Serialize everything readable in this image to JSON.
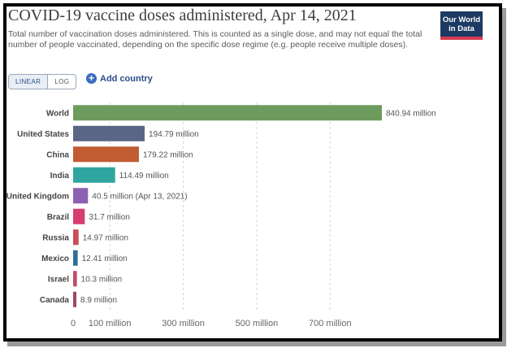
{
  "header": {
    "title": "COVID-19 vaccine doses administered, Apr 14, 2021",
    "subtitle": "Total number of vaccination doses administered. This is counted as a single dose, and may not equal the total number of people vaccinated, depending on the specific dose regime (e.g. people receive multiple doses).",
    "logo_line1": "Our World",
    "logo_line2": "in Data"
  },
  "controls": {
    "linear_label": "LINEAR",
    "log_label": "LOG",
    "add_country_label": "Add country",
    "plus_glyph": "+"
  },
  "chart_data": {
    "type": "bar",
    "orientation": "horizontal",
    "categories": [
      "World",
      "United States",
      "China",
      "India",
      "United Kingdom",
      "Brazil",
      "Russia",
      "Mexico",
      "Israel",
      "Canada"
    ],
    "values": [
      840.94,
      194.79,
      179.22,
      114.49,
      40.5,
      31.7,
      14.97,
      12.41,
      10.3,
      8.9
    ],
    "value_labels": [
      "840.94 million",
      "194.79 million",
      "179.22 million",
      "114.49 million",
      "40.5 million (Apr 13, 2021)",
      "31.7 million",
      "14.97 million",
      "12.41 million",
      "10.3 million",
      "8.9 million"
    ],
    "colors": [
      "#6d9b5d",
      "#5a6684",
      "#c15c33",
      "#2fa5a0",
      "#8c61b3",
      "#d63d72",
      "#c94f58",
      "#2e6f97",
      "#c14c6a",
      "#9c4a68"
    ],
    "x_ticks": [
      0,
      100,
      300,
      500,
      700
    ],
    "x_tick_labels": [
      "0",
      "100 million",
      "300 million",
      "500 million",
      "700 million"
    ],
    "xlim": [
      0,
      840.94
    ],
    "unit": "million"
  }
}
